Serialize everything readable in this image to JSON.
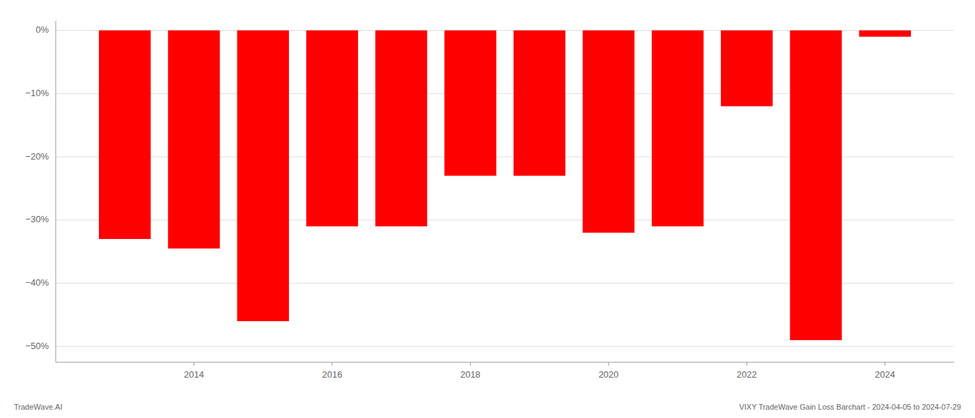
{
  "chart_data": {
    "type": "bar",
    "x": [
      2013,
      2014,
      2015,
      2016,
      2017,
      2018,
      2019,
      2020,
      2021,
      2022,
      2023,
      2024
    ],
    "values": [
      -0.33,
      -0.345,
      -0.46,
      -0.31,
      -0.31,
      -0.23,
      -0.23,
      -0.32,
      -0.31,
      -0.12,
      -0.49,
      -0.01
    ],
    "color": "#ff0000",
    "xlim": [
      2012,
      2025
    ],
    "xticks": [
      2014,
      2016,
      2018,
      2020,
      2022,
      2024
    ],
    "ylim": [
      -0.525,
      0.015
    ],
    "yticks": [
      {
        "value": 0.0,
        "label": "0%"
      },
      {
        "value": -0.1,
        "label": "−10%"
      },
      {
        "value": -0.2,
        "label": "−20%"
      },
      {
        "value": -0.3,
        "label": "−30%"
      },
      {
        "value": -0.4,
        "label": "−40%"
      },
      {
        "value": -0.5,
        "label": "−50%"
      }
    ],
    "grid": true,
    "annotations": [
      "TradeWave.AI",
      "VIXY TradeWave Gain Loss Barchart - 2024-04-05 to 2024-07-29"
    ]
  }
}
